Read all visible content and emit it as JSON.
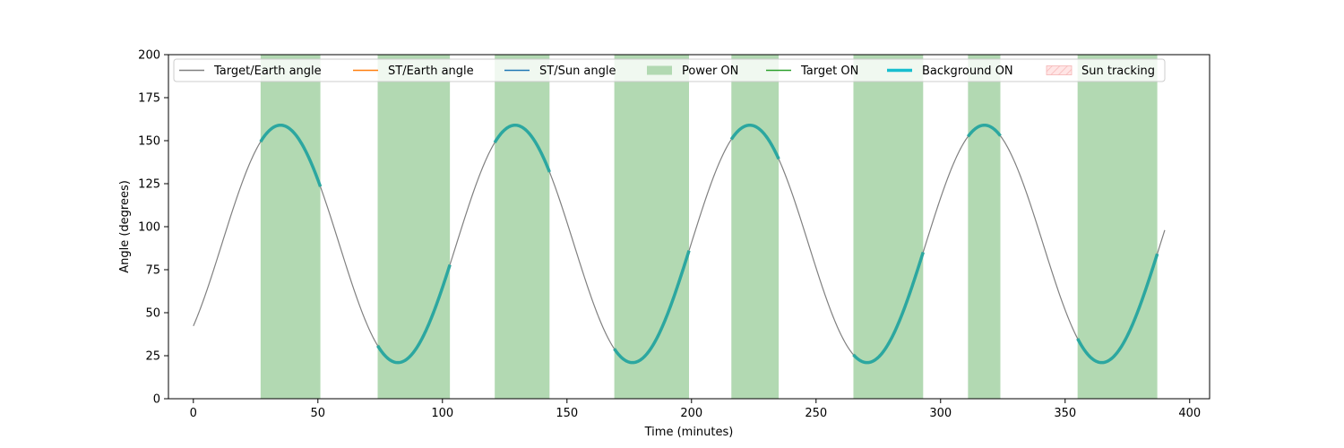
{
  "chart_data": {
    "type": "line",
    "xlabel": "Time (minutes)",
    "ylabel": "Angle (degrees)",
    "xlim": [
      -10,
      408
    ],
    "ylim": [
      0,
      200
    ],
    "xticks": [
      0,
      50,
      100,
      150,
      200,
      250,
      300,
      350,
      400
    ],
    "yticks": [
      0,
      25,
      50,
      75,
      100,
      125,
      150,
      175,
      200
    ],
    "grid": false,
    "legend_placement": "top",
    "colors": {
      "target_earth": "#808080",
      "st_earth": "#ff7f0e",
      "st_sun": "#1f77b4",
      "power_on": "#b2d9b2",
      "target_on": "#2ca02c",
      "background_on": "#17becf",
      "background_on_trace": "#2ca7a0",
      "sun_tracking": "#ffdddd"
    },
    "angle_curve": {
      "description_x_range": [
        0,
        390
      ],
      "start_value": 49,
      "mean": 90,
      "amplitude": 69,
      "period_minutes": 94.2,
      "first_peak_minute": 35
    },
    "power_on_intervals": [
      [
        27,
        51
      ],
      [
        74,
        103
      ],
      [
        121,
        143
      ],
      [
        169,
        199
      ],
      [
        216,
        235
      ],
      [
        265,
        293
      ],
      [
        311,
        324
      ],
      [
        355,
        387
      ]
    ],
    "series": [
      {
        "name": "Target/Earth angle",
        "style": "line",
        "color": "#808080"
      },
      {
        "name": "ST/Earth angle",
        "style": "line",
        "color": "#ff7f0e"
      },
      {
        "name": "ST/Sun angle",
        "style": "line",
        "color": "#1f77b4"
      },
      {
        "name": "Power ON",
        "style": "patch",
        "color": "#b2d9b2"
      },
      {
        "name": "Target ON",
        "style": "line",
        "color": "#2ca02c"
      },
      {
        "name": "Background ON",
        "style": "thick-line",
        "color": "#17becf"
      },
      {
        "name": "Sun tracking",
        "style": "hatched-patch",
        "color": "#ffdddd"
      }
    ]
  }
}
